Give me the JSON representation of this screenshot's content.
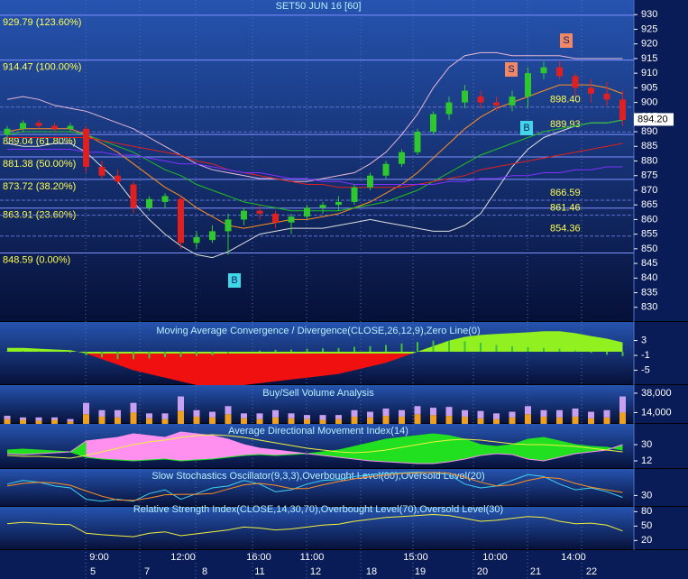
{
  "chart_data": [
    {
      "type": "candlestick",
      "title": "SET50 JUN 16  [60]",
      "ylim": [
        825,
        935
      ],
      "yticks": [
        930,
        925,
        920,
        915,
        910,
        905,
        900,
        895,
        890,
        885,
        880,
        875,
        870,
        865,
        860,
        855,
        850,
        845,
        840,
        835,
        830
      ],
      "open": [
        889,
        891,
        893,
        892,
        891,
        891,
        878,
        875,
        872,
        864,
        866,
        867,
        852,
        853,
        856,
        860,
        863,
        862,
        859,
        861,
        864,
        865,
        866,
        871,
        875,
        879,
        883,
        890,
        896,
        900,
        902,
        900,
        899,
        902,
        910,
        912,
        909,
        905,
        903,
        901
      ],
      "high": [
        892,
        894,
        894,
        893,
        893,
        892,
        880,
        877,
        873,
        868,
        869,
        868,
        856,
        858,
        862,
        864,
        865,
        863,
        862,
        865,
        866,
        868,
        872,
        876,
        880,
        884,
        891,
        897,
        902,
        906,
        904,
        902,
        904,
        912,
        914,
        914,
        910,
        908,
        907,
        904
      ],
      "low": [
        888,
        890,
        891,
        890,
        890,
        876,
        874,
        872,
        862,
        863,
        864,
        850,
        850,
        852,
        848,
        858,
        860,
        857,
        855,
        860,
        862,
        863,
        865,
        870,
        874,
        878,
        882,
        889,
        894,
        898,
        898,
        897,
        897,
        898,
        908,
        908,
        902,
        900,
        899,
        892
      ],
      "close": [
        891,
        893,
        892,
        891,
        892,
        878,
        875,
        873,
        864,
        867,
        868,
        852,
        854,
        856,
        860,
        863,
        862,
        859,
        861,
        864,
        865,
        866,
        871,
        875,
        879,
        883,
        890,
        896,
        900,
        904,
        900,
        899,
        902,
        910,
        912,
        909,
        905,
        903,
        901,
        894
      ],
      "up_color": "#2ec82e",
      "down_color": "#e02020",
      "overlays": [
        {
          "color": "#e8b8d8",
          "values": [
            901,
            902,
            901,
            899,
            898,
            897,
            895,
            893,
            891,
            888,
            885,
            882,
            879,
            877,
            876,
            875,
            874,
            874,
            873,
            873,
            874,
            875,
            876,
            879,
            883,
            889,
            896,
            905,
            912,
            916,
            917,
            917,
            916,
            916,
            916,
            916,
            915,
            915,
            915,
            915
          ]
        },
        {
          "color": "#e0e0e0",
          "values": [
            886,
            885,
            885,
            886,
            886,
            883,
            878,
            873,
            866,
            860,
            855,
            851,
            848,
            847,
            849,
            852,
            855,
            856,
            857,
            857,
            857,
            858,
            859,
            860,
            859,
            858,
            857,
            856,
            856,
            858,
            862,
            870,
            878,
            884,
            888,
            890,
            892,
            893,
            893,
            894
          ]
        },
        {
          "color": "#ff9020",
          "values": [
            890,
            891,
            891,
            891,
            891,
            889,
            886,
            883,
            879,
            875,
            871,
            868,
            864,
            861,
            858,
            857,
            858,
            859,
            860,
            860,
            861,
            862,
            864,
            866,
            869,
            872,
            876,
            881,
            886,
            891,
            895,
            898,
            900,
            902,
            904,
            906,
            906,
            906,
            905,
            903
          ]
        },
        {
          "color": "#20c020",
          "values": [
            889,
            890,
            890,
            890,
            890,
            889,
            887,
            885,
            883,
            880,
            877,
            875,
            872,
            870,
            868,
            866,
            865,
            864,
            863,
            863,
            863,
            863,
            864,
            865,
            866,
            868,
            870,
            873,
            876,
            879,
            882,
            884,
            886,
            888,
            890,
            891,
            892,
            893,
            893,
            894
          ]
        },
        {
          "color": "#e02020",
          "values": [
            888,
            888,
            888,
            888,
            888,
            888,
            887,
            886,
            885,
            884,
            883,
            882,
            880,
            879,
            877,
            876,
            875,
            874,
            873,
            872,
            872,
            871,
            871,
            871,
            871,
            871,
            872,
            873,
            874,
            875,
            877,
            878,
            879,
            880,
            881,
            882,
            883,
            884,
            885,
            886
          ]
        },
        {
          "color": "#8030ff",
          "values": [
            884,
            884,
            884,
            884,
            884,
            883,
            883,
            882,
            882,
            881,
            880,
            879,
            879,
            878,
            877,
            876,
            876,
            875,
            874,
            874,
            873,
            873,
            872,
            872,
            872,
            872,
            872,
            872,
            873,
            873,
            874,
            874,
            875,
            875,
            876,
            876,
            877,
            877,
            878,
            878
          ]
        }
      ],
      "fib_levels": [
        {
          "value": 929.79,
          "label": "929.79 (123.60%)"
        },
        {
          "value": 914.47,
          "label": "914.47 (100.00%)"
        },
        {
          "value": 889.04,
          "label": "889.04 (61.80%)"
        },
        {
          "value": 881.38,
          "label": "881.38 (50.00%)"
        },
        {
          "value": 873.72,
          "label": "873.72 (38.20%)"
        },
        {
          "value": 863.91,
          "label": "863.91 (23.60%)"
        },
        {
          "value": 848.59,
          "label": "848.59 (0.00%)"
        }
      ],
      "levels": [
        {
          "value": 898.4,
          "label": "898.40"
        },
        {
          "value": 889.93,
          "label": "889.93"
        },
        {
          "value": 866.59,
          "label": "866.59"
        },
        {
          "value": 861.46,
          "label": "861.46"
        },
        {
          "value": 854.36,
          "label": "854.36"
        }
      ],
      "last_price": {
        "value": 894.2,
        "label": "894.20"
      },
      "signals": [
        "B",
        "B",
        "S",
        "S"
      ]
    },
    {
      "type": "macd",
      "title": "Moving Average Convergence / Divergence(CLOSE,26,12,9),Zero Line(0)",
      "ylim": [
        -9,
        8
      ],
      "yticks": [
        3,
        -1,
        -5
      ],
      "values": [
        1,
        1,
        0.8,
        0.6,
        0.4,
        -0.5,
        -2,
        -3.5,
        -5,
        -6,
        -7,
        -8,
        -9,
        -9.5,
        -9.5,
        -9,
        -8.5,
        -8,
        -7.5,
        -7,
        -6.5,
        -6,
        -5,
        -4,
        -3,
        -1.5,
        0,
        1.5,
        3,
        4,
        4.5,
        4.8,
        5,
        5.2,
        5.5,
        5.5,
        5,
        4.2,
        3.5,
        2.5
      ],
      "histogram": [
        0.2,
        0.2,
        0.1,
        0,
        -0.2,
        -1,
        -1.5,
        -2,
        -2,
        -1.8,
        -1.5,
        -1.5,
        -1.2,
        -1,
        -0.5,
        0,
        0.3,
        0.5,
        0.6,
        0.8,
        0.9,
        1,
        1.3,
        1.5,
        1.8,
        2.2,
        2.6,
        3,
        3,
        2.8,
        2.4,
        1.8,
        1.5,
        1.2,
        1,
        0.8,
        0.3,
        -0.3,
        -0.8,
        -1.2
      ],
      "up_color": "#90f020",
      "down_color": "#f01010",
      "hist_color": "#40c040"
    },
    {
      "type": "stacked-bar",
      "title": "Buy/Sell Volume Analysis",
      "ylim": [
        0,
        48000
      ],
      "yticks": [
        {
          "value": 38000,
          "label": "38,000"
        },
        {
          "value": 14000,
          "label": "14,000"
        }
      ],
      "series": [
        {
          "color": "#f0a020",
          "values": [
            6000,
            5000,
            4000,
            5000,
            3000,
            12000,
            9000,
            8000,
            14000,
            7000,
            6000,
            16000,
            9000,
            8000,
            12000,
            7000,
            6000,
            8000,
            7000,
            6000,
            5000,
            6000,
            9000,
            8000,
            10000,
            9000,
            12000,
            11000,
            10000,
            9000,
            7000,
            6000,
            8000,
            12000,
            9000,
            8000,
            9000,
            7000,
            8000,
            14000
          ]
        },
        {
          "color": "#c8a0f0",
          "values": [
            4000,
            3000,
            4000,
            3000,
            3000,
            14000,
            8000,
            9000,
            12000,
            6000,
            7000,
            18000,
            8000,
            7000,
            10000,
            6000,
            7000,
            9000,
            6000,
            5000,
            6000,
            5000,
            8000,
            7000,
            9000,
            8000,
            10000,
            9000,
            11000,
            8000,
            9000,
            7000,
            7000,
            10000,
            8000,
            9000,
            10000,
            8000,
            9000,
            20000
          ]
        }
      ]
    },
    {
      "type": "adx",
      "title": "Average Directional Movement Index(14)",
      "ylim": [
        3,
        53
      ],
      "yticks": [
        30,
        12
      ],
      "plus_di": [
        24,
        25,
        24,
        23,
        22,
        16,
        14,
        13,
        12,
        13,
        14,
        12,
        13,
        14,
        16,
        18,
        19,
        18,
        19,
        20,
        22,
        24,
        28,
        32,
        36,
        38,
        40,
        42,
        40,
        36,
        30,
        28,
        30,
        36,
        38,
        34,
        30,
        28,
        27,
        24
      ],
      "minus_di": [
        20,
        19,
        20,
        21,
        22,
        34,
        36,
        38,
        42,
        40,
        38,
        44,
        42,
        40,
        36,
        30,
        26,
        24,
        22,
        20,
        18,
        16,
        14,
        12,
        11,
        10,
        9,
        9,
        11,
        14,
        18,
        20,
        19,
        14,
        12,
        16,
        20,
        22,
        24,
        30
      ],
      "adx": [
        18,
        17,
        17,
        16,
        15,
        18,
        22,
        26,
        30,
        33,
        35,
        38,
        40,
        41,
        40,
        38,
        35,
        32,
        29,
        26,
        24,
        22,
        21,
        22,
        24,
        27,
        30,
        33,
        35,
        36,
        35,
        33,
        31,
        30,
        30,
        29,
        28,
        26,
        24,
        22
      ],
      "plus_color": "#20e020",
      "minus_color": "#ff90f0",
      "adx_color": "#f0f040"
    },
    {
      "type": "line",
      "title": "Slow Stochastics Oscillator(9,3,3),Overbought Level(80),Oversold Level(20)",
      "ylim": [
        0,
        100
      ],
      "yticks": [
        30
      ],
      "series": [
        {
          "color": "#40d0f0",
          "values": [
            60,
            70,
            65,
            55,
            50,
            20,
            15,
            20,
            15,
            35,
            45,
            20,
            35,
            50,
            55,
            70,
            60,
            40,
            45,
            60,
            70,
            72,
            80,
            85,
            88,
            90,
            92,
            90,
            85,
            60,
            50,
            55,
            70,
            85,
            80,
            60,
            45,
            50,
            40,
            25
          ]
        },
        {
          "color": "#ff9020",
          "values": [
            55,
            62,
            65,
            63,
            57,
            42,
            28,
            18,
            17,
            23,
            32,
            33,
            33,
            35,
            47,
            58,
            62,
            57,
            48,
            48,
            58,
            67,
            74,
            79,
            84,
            88,
            90,
            91,
            89,
            78,
            65,
            55,
            58,
            70,
            78,
            75,
            62,
            52,
            45,
            38
          ]
        }
      ]
    },
    {
      "type": "line",
      "title": "Relative Strength Index(CLOSE,14,30,70),Overbought Level(70),Oversold Level(30)",
      "ylim": [
        0,
        90
      ],
      "yticks": [
        80,
        50,
        20
      ],
      "series": [
        {
          "color": "#f0f040",
          "values": [
            55,
            58,
            56,
            54,
            53,
            35,
            32,
            30,
            28,
            35,
            38,
            30,
            34,
            38,
            42,
            48,
            46,
            42,
            44,
            48,
            52,
            54,
            60,
            64,
            68,
            70,
            72,
            74,
            72,
            66,
            60,
            62,
            66,
            70,
            68,
            60,
            55,
            56,
            52,
            40
          ]
        }
      ]
    }
  ],
  "time_axis": {
    "times": [
      "9:00",
      "12:00",
      "16:00",
      "11:00",
      "15:00",
      "10:00",
      "14:00"
    ],
    "dates": [
      "5",
      "7",
      "8",
      "11",
      "12",
      "18",
      "19",
      "20",
      "21",
      "22"
    ]
  }
}
